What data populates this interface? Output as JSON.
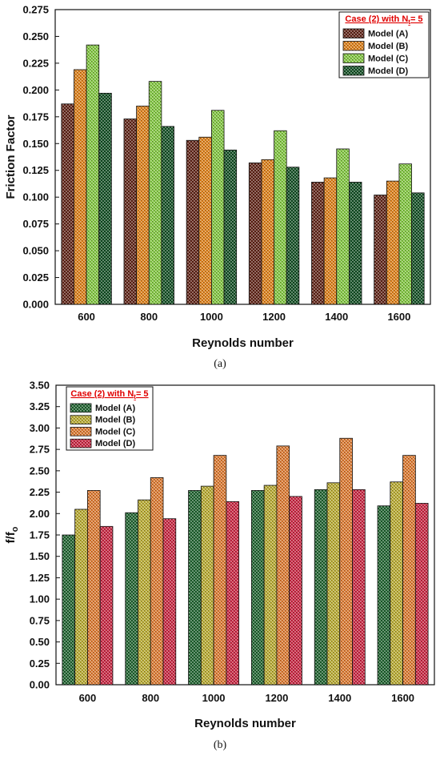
{
  "chart_data": [
    {
      "type": "bar",
      "panel_label": "(a)",
      "xlabel": "Reynolds number",
      "ylabel": "Friction Factor",
      "ylim": [
        0,
        0.275
      ],
      "ytick_step": 0.025,
      "ytick_decimals": 3,
      "categories": [
        "600",
        "800",
        "1000",
        "1200",
        "1400",
        "1600"
      ],
      "legend_title": "Case (2) with N",
      "legend_title_sub": "t",
      "legend_title_tail": "= 5",
      "legend_position": "top-right",
      "series": [
        {
          "name": "Model (A)",
          "values": [
            0.187,
            0.173,
            0.153,
            0.132,
            0.114,
            0.102
          ]
        },
        {
          "name": "Model (B)",
          "values": [
            0.219,
            0.185,
            0.156,
            0.135,
            0.118,
            0.115
          ]
        },
        {
          "name": "Model (C)",
          "values": [
            0.242,
            0.208,
            0.181,
            0.162,
            0.145,
            0.131
          ]
        },
        {
          "name": "Model (D)",
          "values": [
            0.197,
            0.166,
            0.144,
            0.128,
            0.114,
            0.104
          ]
        }
      ],
      "colors": [
        "#5b1f12",
        "#d97a12",
        "#7cc23a",
        "#0d4a1f"
      ],
      "grid": false
    },
    {
      "type": "bar",
      "panel_label": "(b)",
      "xlabel": "Reynolds number",
      "ylabel": "f/f",
      "ylabel_sub": "o",
      "ylim": [
        0,
        3.5
      ],
      "ytick_step": 0.25,
      "ytick_decimals": 2,
      "categories": [
        "600",
        "800",
        "1000",
        "1200",
        "1400",
        "1600"
      ],
      "legend_title": "Case (2) with N",
      "legend_title_sub": "t",
      "legend_title_tail": "= 5",
      "legend_position": "top-left",
      "series": [
        {
          "name": "Model (A)",
          "values": [
            1.75,
            2.01,
            2.27,
            2.27,
            2.28,
            2.09
          ]
        },
        {
          "name": "Model (B)",
          "values": [
            2.05,
            2.16,
            2.32,
            2.33,
            2.36,
            2.37
          ]
        },
        {
          "name": "Model (C)",
          "values": [
            2.27,
            2.42,
            2.68,
            2.79,
            2.88,
            2.68
          ]
        },
        {
          "name": "Model (D)",
          "values": [
            1.85,
            1.94,
            2.14,
            2.2,
            2.28,
            2.12
          ]
        }
      ],
      "colors": [
        "#1a5e2a",
        "#b3a52a",
        "#d8742a",
        "#c4203c"
      ],
      "grid": false
    }
  ]
}
